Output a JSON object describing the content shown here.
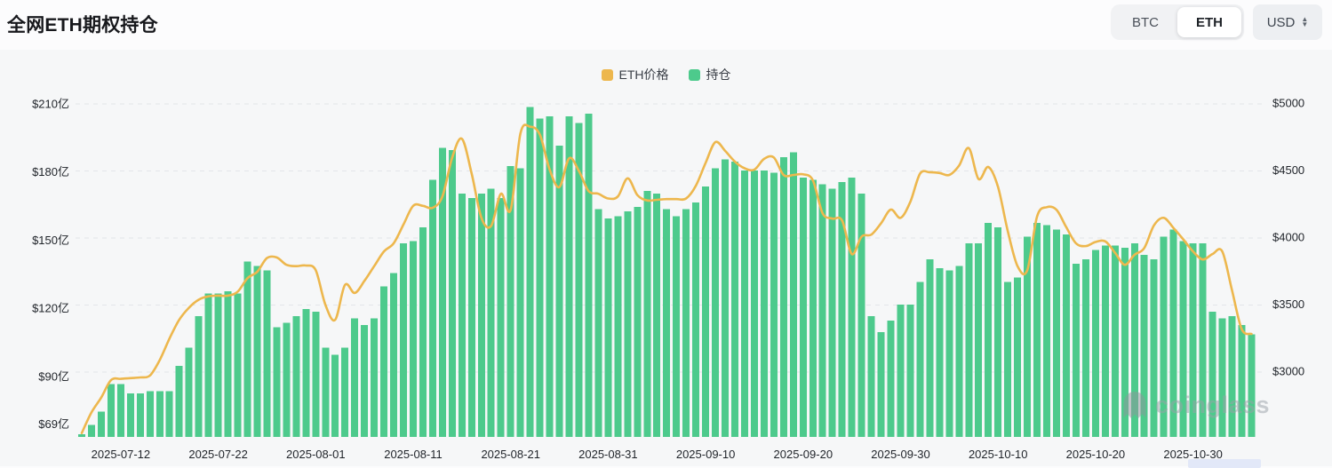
{
  "header": {
    "title": "全网ETH期权持仓"
  },
  "controls": {
    "coin_toggle": {
      "options": [
        "BTC",
        "ETH"
      ],
      "selected": "ETH"
    },
    "currency_select": {
      "value": "USD"
    }
  },
  "legend": [
    {
      "label": "ETH价格",
      "color": "#edb74d"
    },
    {
      "label": "持仓",
      "color": "#4dca8c"
    }
  ],
  "watermark": {
    "text": "coinglass"
  },
  "chart_data": {
    "type": "bar",
    "title": "全网ETH期权持仓",
    "grid": "dashed-horizontal",
    "legend_position": "top-center",
    "x": [
      "2025-07-08",
      "2025-07-09",
      "2025-07-10",
      "2025-07-11",
      "2025-07-12",
      "2025-07-13",
      "2025-07-14",
      "2025-07-15",
      "2025-07-16",
      "2025-07-17",
      "2025-07-18",
      "2025-07-19",
      "2025-07-20",
      "2025-07-21",
      "2025-07-22",
      "2025-07-23",
      "2025-07-24",
      "2025-07-25",
      "2025-07-26",
      "2025-07-27",
      "2025-07-28",
      "2025-07-29",
      "2025-07-30",
      "2025-07-31",
      "2025-08-01",
      "2025-08-02",
      "2025-08-03",
      "2025-08-04",
      "2025-08-05",
      "2025-08-06",
      "2025-08-07",
      "2025-08-08",
      "2025-08-09",
      "2025-08-10",
      "2025-08-11",
      "2025-08-12",
      "2025-08-13",
      "2025-08-14",
      "2025-08-15",
      "2025-08-16",
      "2025-08-17",
      "2025-08-18",
      "2025-08-19",
      "2025-08-20",
      "2025-08-21",
      "2025-08-22",
      "2025-08-23",
      "2025-08-24",
      "2025-08-25",
      "2025-08-26",
      "2025-08-27",
      "2025-08-28",
      "2025-08-29",
      "2025-08-30",
      "2025-08-31",
      "2025-09-01",
      "2025-09-02",
      "2025-09-03",
      "2025-09-04",
      "2025-09-05",
      "2025-09-06",
      "2025-09-07",
      "2025-09-08",
      "2025-09-09",
      "2025-09-10",
      "2025-09-11",
      "2025-09-12",
      "2025-09-13",
      "2025-09-14",
      "2025-09-15",
      "2025-09-16",
      "2025-09-17",
      "2025-09-18",
      "2025-09-19",
      "2025-09-20",
      "2025-09-21",
      "2025-09-22",
      "2025-09-23",
      "2025-09-24",
      "2025-09-25",
      "2025-09-26",
      "2025-09-27",
      "2025-09-28",
      "2025-09-29",
      "2025-09-30",
      "2025-10-01",
      "2025-10-02",
      "2025-10-03",
      "2025-10-04",
      "2025-10-05",
      "2025-10-06",
      "2025-10-07",
      "2025-10-08",
      "2025-10-09",
      "2025-10-10",
      "2025-10-11",
      "2025-10-12",
      "2025-10-13",
      "2025-10-14",
      "2025-10-15",
      "2025-10-16",
      "2025-10-17",
      "2025-10-18",
      "2025-10-19",
      "2025-10-20",
      "2025-10-21",
      "2025-10-22",
      "2025-10-23",
      "2025-10-24",
      "2025-10-25",
      "2025-10-26",
      "2025-10-27",
      "2025-10-28",
      "2025-10-29",
      "2025-10-30",
      "2025-10-31",
      "2025-11-01",
      "2025-11-02",
      "2025-11-03",
      "2025-11-04",
      "2025-11-05"
    ],
    "series": [
      {
        "name": "持仓",
        "type": "bar",
        "axis": "left",
        "unit": "亿美元",
        "color": "#4dca8c",
        "values": [
          65,
          69,
          75,
          87,
          87,
          83,
          83,
          84,
          84,
          84,
          95,
          103,
          117,
          127,
          127,
          128,
          127,
          141,
          139,
          137,
          112,
          114,
          117,
          120,
          119,
          103,
          100,
          103,
          116,
          113,
          116,
          130,
          136,
          149,
          150,
          156,
          177,
          191,
          190,
          171,
          169,
          171,
          173,
          169,
          183,
          182,
          209,
          204,
          205,
          192,
          205,
          202,
          206,
          164,
          160,
          161,
          163,
          165,
          172,
          171,
          164,
          161,
          164,
          167,
          174,
          182,
          186,
          185,
          181,
          181,
          181,
          180,
          187,
          189,
          178,
          177,
          175,
          173,
          176,
          178,
          171,
          117,
          110,
          115,
          122,
          122,
          132,
          142,
          138,
          137,
          139,
          149,
          149,
          158,
          156,
          132,
          134,
          152,
          158,
          157,
          155,
          153,
          140,
          142,
          146,
          148,
          148,
          147,
          149,
          144,
          142,
          152,
          155,
          150,
          149,
          149,
          119,
          116,
          117,
          113,
          109
        ]
      },
      {
        "name": "ETH价格",
        "type": "line",
        "axis": "right",
        "unit": "USD",
        "color": "#edb74d",
        "values": [
          2545,
          2700,
          2810,
          2940,
          2950,
          2955,
          2960,
          2975,
          3090,
          3250,
          3390,
          3480,
          3540,
          3565,
          3570,
          3570,
          3600,
          3700,
          3748,
          3850,
          3855,
          3800,
          3790,
          3795,
          3760,
          3500,
          3390,
          3650,
          3590,
          3680,
          3790,
          3900,
          3960,
          4100,
          4240,
          4240,
          4225,
          4310,
          4600,
          4740,
          4480,
          4150,
          4090,
          4330,
          4210,
          4780,
          4830,
          4770,
          4510,
          4380,
          4595,
          4500,
          4350,
          4330,
          4295,
          4310,
          4445,
          4320,
          4280,
          4285,
          4290,
          4290,
          4295,
          4390,
          4560,
          4715,
          4650,
          4570,
          4520,
          4510,
          4590,
          4600,
          4470,
          4470,
          4475,
          4430,
          4185,
          4145,
          4130,
          3880,
          4010,
          4025,
          4110,
          4212,
          4150,
          4270,
          4480,
          4490,
          4485,
          4470,
          4540,
          4670,
          4440,
          4530,
          4380,
          4050,
          3790,
          3760,
          4160,
          4230,
          4210,
          4080,
          3960,
          3940,
          3970,
          3975,
          3890,
          3800,
          3875,
          3925,
          4095,
          4150,
          4075,
          3990,
          3900,
          3840,
          3880,
          3900,
          3610,
          3320,
          3285
        ]
      }
    ],
    "left_axis": {
      "ticks": [
        "$210亿",
        "$180亿",
        "$150亿",
        "$120亿",
        "$90亿",
        "$69亿"
      ],
      "tick_values": [
        210,
        180,
        150,
        120,
        90,
        69
      ]
    },
    "right_axis": {
      "ticks": [
        "$5000",
        "$4500",
        "$4000",
        "$3500",
        "$3000"
      ],
      "tick_values": [
        5000,
        4500,
        4000,
        3500,
        3000
      ]
    },
    "x_ticks": [
      "2025-07-12",
      "2025-07-22",
      "2025-08-01",
      "2025-08-11",
      "2025-08-21",
      "2025-08-31",
      "2025-09-10",
      "2025-09-20",
      "2025-09-30",
      "2025-10-10",
      "2025-10-20",
      "2025-10-30"
    ]
  },
  "colors": {
    "grid": "#e3e5e9",
    "axis_text": "#1f2329",
    "plot_bg": "#f6f7f8"
  }
}
